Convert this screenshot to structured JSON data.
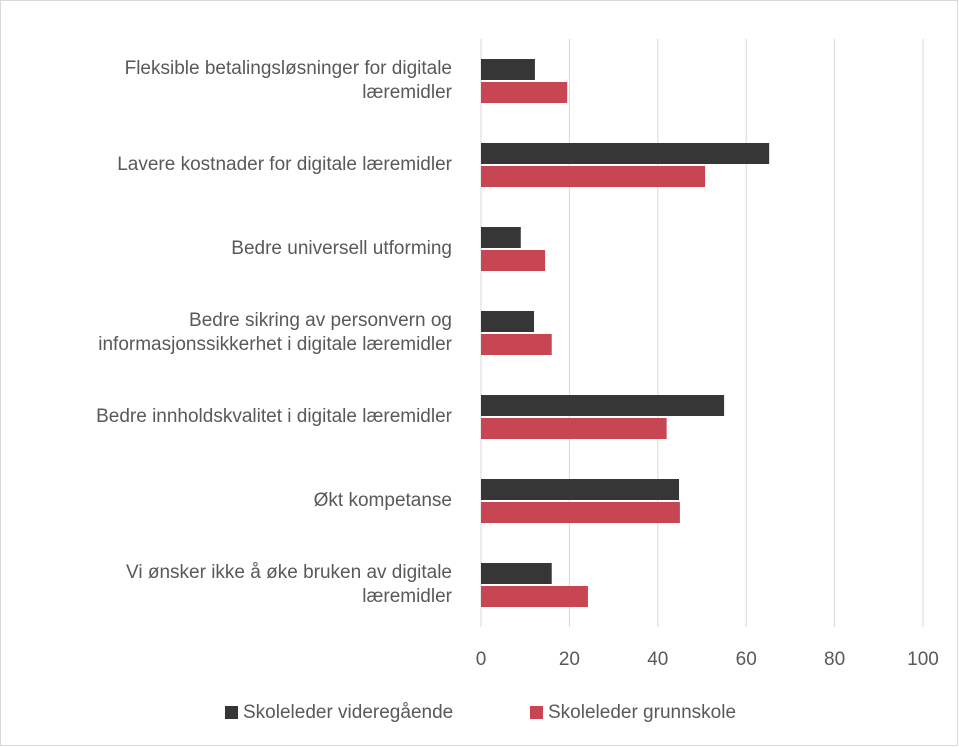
{
  "chart_data": {
    "type": "bar",
    "orientation": "horizontal",
    "categories": [
      "Fleksible betalingsløsninger for digitale\nlæremidler",
      "Lavere kostnader for digitale læremidler",
      "Bedre universell utforming",
      "Bedre sikring av personvern og\ninformasjonssikkerhet i digitale læremidler",
      "Bedre innholdskvalitet i digitale læremidler",
      "Økt kompetanse",
      "Vi ønsker ikke å øke bruken av digitale\nlæremidler"
    ],
    "series": [
      {
        "name": "Skoleleder videregående",
        "color": "#363636",
        "values": [
          12.2,
          65.2,
          9,
          12,
          55,
          44.8,
          16
        ]
      },
      {
        "name": "Skoleleder grunnskole",
        "color": "#c84553",
        "values": [
          19.5,
          50.7,
          14.5,
          16,
          42,
          45,
          24.2
        ]
      }
    ],
    "xlim": [
      0,
      100
    ],
    "xticks": [
      0,
      20,
      40,
      60,
      80,
      100
    ],
    "grid": true,
    "legend": "bottom"
  }
}
